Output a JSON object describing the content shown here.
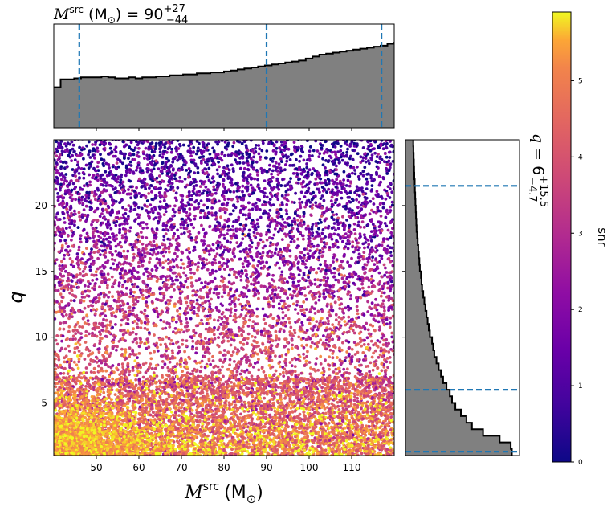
{
  "chart_data": [
    {
      "type": "scatter",
      "xlabel": "M",
      "xlabel_superscript": "src",
      "xlabel_unit": "(M",
      "xlabel_unit_subscript": "⊙",
      "xlabel_unit_close": ")",
      "ylabel": "q",
      "xlim": [
        40,
        120
      ],
      "ylim": [
        1,
        25
      ],
      "x_ticks": [
        50,
        60,
        70,
        80,
        90,
        100,
        110
      ],
      "y_ticks": [
        5,
        10,
        15,
        20
      ],
      "color_by": "snr",
      "colormap": "plasma",
      "n_points": 12000,
      "density_note": "points concentrated at low q; low snr (dark) at high q"
    },
    {
      "type": "area",
      "orientation": "vertical",
      "title_prefix": "M",
      "title_superscript": "src",
      "title_unit": "(M",
      "title_unit_subscript": "⊙",
      "title_unit_close": ")",
      "title_eq": "= 90",
      "title_sup": "+27",
      "title_sub": "−44",
      "median": 90,
      "lower": 46,
      "upper": 117,
      "fill_color": "#808080",
      "line_color": "#1f77b4",
      "xlim": [
        40,
        120
      ],
      "bin_width": 1.6,
      "heights": [
        0.41,
        0.49,
        0.49,
        0.5,
        0.51,
        0.51,
        0.51,
        0.52,
        0.51,
        0.5,
        0.5,
        0.51,
        0.5,
        0.51,
        0.51,
        0.52,
        0.52,
        0.53,
        0.53,
        0.54,
        0.54,
        0.55,
        0.55,
        0.56,
        0.56,
        0.57,
        0.58,
        0.59,
        0.6,
        0.61,
        0.62,
        0.63,
        0.64,
        0.65,
        0.66,
        0.67,
        0.68,
        0.7,
        0.72,
        0.74,
        0.75,
        0.76,
        0.77,
        0.78,
        0.79,
        0.8,
        0.81,
        0.82,
        0.83,
        0.85,
        0.86,
        0.86,
        0.87,
        0.88,
        0.89,
        0.9,
        0.91,
        0.91,
        0.92,
        0.93,
        0.94,
        0.95,
        0.96,
        0.96,
        0.97,
        0.97,
        0.98,
        0.98,
        0.98,
        0.99,
        0.98,
        0.99,
        0.99,
        1.0,
        0.96
      ]
    },
    {
      "type": "area",
      "orientation": "horizontal",
      "title_q": "q",
      "title_eq": "= 6",
      "title_sup": "+15.5",
      "title_sub": "−4.7",
      "median": 6,
      "lower": 1.3,
      "upper": 21.5,
      "fill_color": "#808080",
      "line_color": "#1f77b4",
      "ylim": [
        1,
        25
      ],
      "bin_width": 0.5,
      "widths": [
        0.96,
        0.95,
        0.85,
        0.7,
        0.6,
        0.55,
        0.5,
        0.45,
        0.42,
        0.4,
        0.37,
        0.34,
        0.32,
        0.3,
        0.28,
        0.26,
        0.25,
        0.24,
        0.22,
        0.21,
        0.2,
        0.19,
        0.18,
        0.17,
        0.16,
        0.15,
        0.145,
        0.14,
        0.13,
        0.125,
        0.12,
        0.115,
        0.11,
        0.105,
        0.1,
        0.098,
        0.095,
        0.093,
        0.09,
        0.088,
        0.085,
        0.083,
        0.08,
        0.078,
        0.076,
        0.074,
        0.072,
        0.07
      ]
    },
    {
      "type": "colorbar",
      "label": "snr",
      "colormap": "plasma",
      "range": [
        0,
        5.9
      ],
      "ticks": [
        0,
        1,
        2,
        3,
        4,
        5
      ]
    }
  ]
}
